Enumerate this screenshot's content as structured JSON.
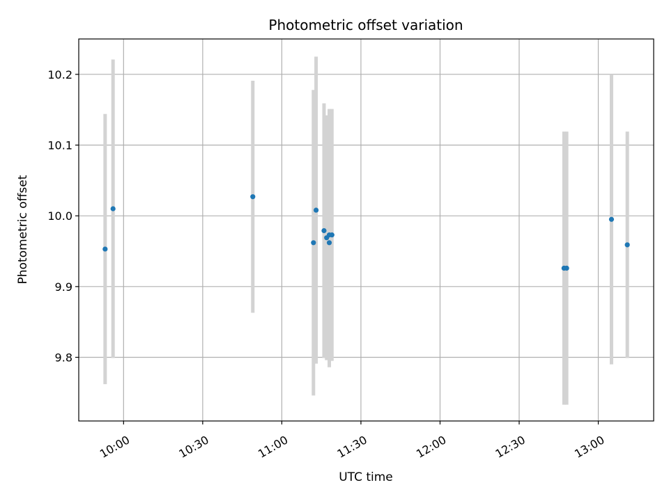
{
  "chart_data": {
    "type": "scatter",
    "title": "Photometric offset variation",
    "xlabel": "UTC time",
    "ylabel": "Photometric offset",
    "x_ticks": [
      "10:00",
      "10:30",
      "11:00",
      "11:30",
      "12:00",
      "12:30",
      "13:00"
    ],
    "y_ticks": [
      9.8,
      9.9,
      10.0,
      10.1,
      10.2
    ],
    "y_tick_labels": [
      "9.8",
      "9.9",
      "10.0",
      "10.1",
      "10.2"
    ],
    "xlim": [
      "09:43",
      "13:21"
    ],
    "ylim": [
      9.71,
      10.25
    ],
    "grid": true,
    "colors": {
      "point": "#1f77b4",
      "errorbar": "#d3d3d3",
      "grid": "#b0b0b0"
    },
    "series": [
      {
        "points": [
          {
            "time": "09:53",
            "value": 9.953,
            "err": 0.191
          },
          {
            "time": "09:56",
            "value": 10.01,
            "err": 0.211
          },
          {
            "time": "10:49",
            "value": 10.027,
            "err": 0.164
          },
          {
            "time": "11:12",
            "value": 9.962,
            "err": 0.216
          },
          {
            "time": "11:13",
            "value": 10.008,
            "err": 0.217
          },
          {
            "time": "11:16",
            "value": 9.979,
            "err": 0.18
          },
          {
            "time": "11:17",
            "value": 9.969,
            "err": 0.173
          },
          {
            "time": "11:18",
            "value": 9.962,
            "err": 0.176
          },
          {
            "time": "11:18",
            "value": 9.973,
            "err": 0.178
          },
          {
            "time": "11:19",
            "value": 9.973,
            "err": 0.178
          },
          {
            "time": "12:47",
            "value": 9.926,
            "err": 0.193
          },
          {
            "time": "12:48",
            "value": 9.926,
            "err": 0.193
          },
          {
            "time": "13:05",
            "value": 9.995,
            "err": 0.205
          },
          {
            "time": "13:11",
            "value": 9.959,
            "err": 0.16
          }
        ]
      }
    ]
  }
}
